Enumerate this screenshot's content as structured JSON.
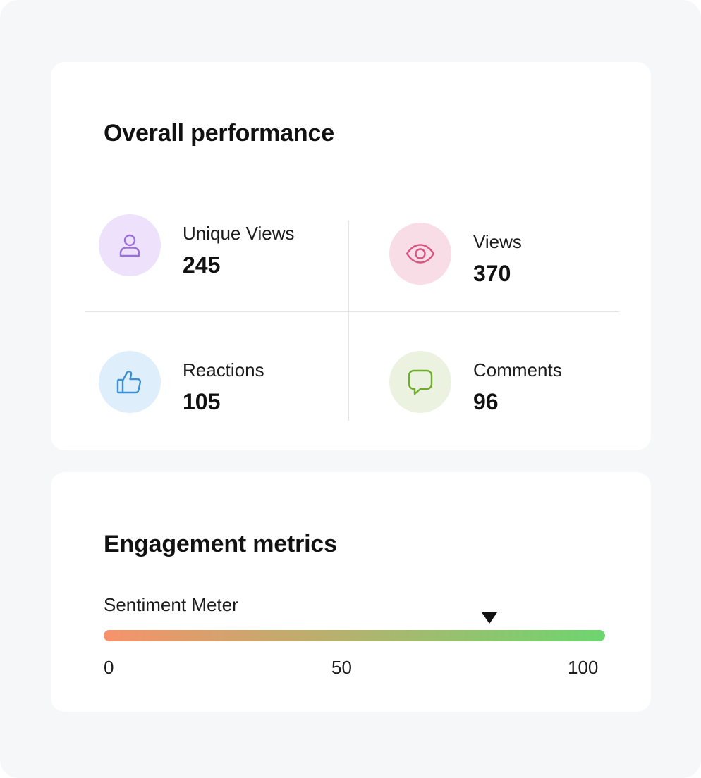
{
  "performance": {
    "title": "Overall performance",
    "stats": {
      "unique_views": {
        "label": "Unique Views",
        "value": "245",
        "icon": "user-icon",
        "bg": "#eee1fb",
        "color": "#9b6fd8"
      },
      "views": {
        "label": "Views",
        "value": "370",
        "icon": "eye-icon",
        "bg": "#f8dde6",
        "color": "#d8557f"
      },
      "reactions": {
        "label": "Reactions",
        "value": "105",
        "icon": "thumbs-up-icon",
        "bg": "#dfeefb",
        "color": "#3b8fd6"
      },
      "comments": {
        "label": "Comments",
        "value": "96",
        "icon": "speech-bubble-icon",
        "bg": "#ebf2e0",
        "color": "#6fae2b"
      }
    }
  },
  "engagement": {
    "title": "Engagement metrics",
    "meter": {
      "label": "Sentiment Meter",
      "min": 0,
      "max": 100,
      "value": 77,
      "ticks": [
        "0",
        "50",
        "100"
      ],
      "gradient_start": "#f6926c",
      "gradient_end": "#6dd56f"
    }
  }
}
